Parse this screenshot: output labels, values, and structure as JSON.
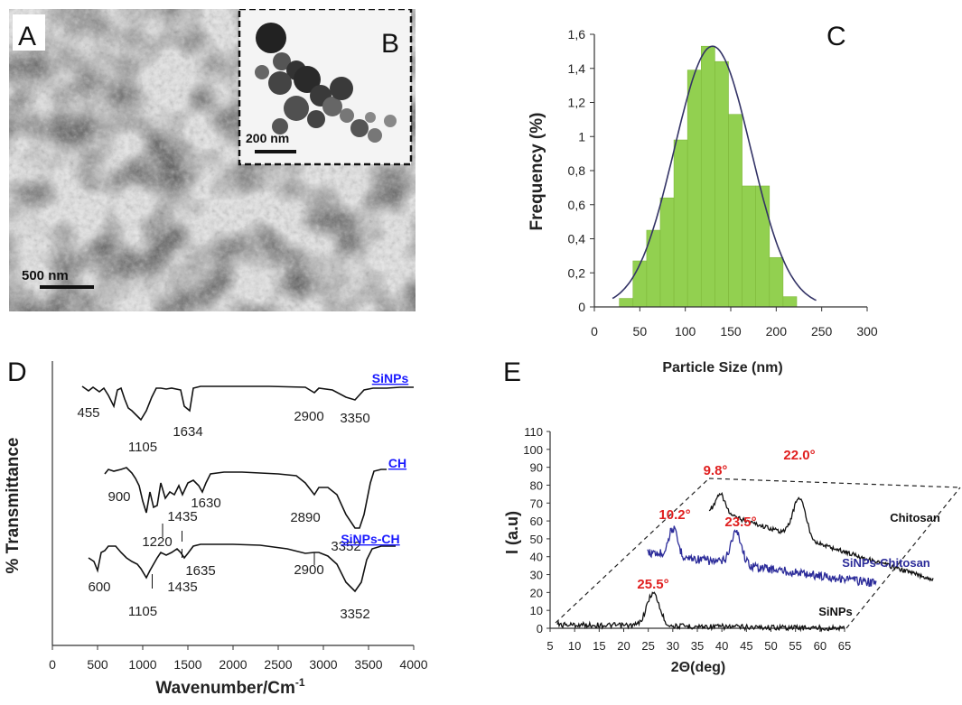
{
  "panels": {
    "A": {
      "letter": "A",
      "scalebar": "500 nm",
      "inset": {
        "letter": "B",
        "scalebar": "200 nm"
      }
    }
  },
  "chart_data": [
    {
      "panel": "C",
      "type": "bar",
      "title": "",
      "xlabel": "Particle Size (nm)",
      "ylabel": "Frequency (%)",
      "xlim": [
        0,
        300
      ],
      "ylim": [
        0,
        1.6
      ],
      "xticks": [
        "0",
        "50",
        "100",
        "150",
        "200",
        "250",
        "300"
      ],
      "yticks": [
        "0",
        "0,2",
        "0,4",
        "0,6",
        "0,8",
        "1",
        "1,2",
        "1,4",
        "1,6"
      ],
      "bars": [
        {
          "x": 35,
          "y": 0.05
        },
        {
          "x": 50,
          "y": 0.27
        },
        {
          "x": 65,
          "y": 0.45
        },
        {
          "x": 80,
          "y": 0.64
        },
        {
          "x": 95,
          "y": 0.98
        },
        {
          "x": 110,
          "y": 1.39
        },
        {
          "x": 125,
          "y": 1.53
        },
        {
          "x": 140,
          "y": 1.44
        },
        {
          "x": 155,
          "y": 1.13
        },
        {
          "x": 170,
          "y": 0.71
        },
        {
          "x": 185,
          "y": 0.71
        },
        {
          "x": 200,
          "y": 0.29
        },
        {
          "x": 215,
          "y": 0.06
        }
      ],
      "bar_width": 15,
      "fit_curve": {
        "mean": 130,
        "sd": 42,
        "peak": 1.53,
        "from": 20,
        "to": 245
      },
      "bar_color": "#92d050",
      "curve_color": "#333366"
    },
    {
      "panel": "D",
      "type": "line",
      "xlabel": "Wavenumber/Cm",
      "xlabel_sup": "-1",
      "ylabel": "% Transmittance",
      "xlim": [
        0,
        4000
      ],
      "xticks": [
        "0",
        "500",
        "1000",
        "1500",
        "2000",
        "2500",
        "3000",
        "3500",
        "4000"
      ],
      "series": [
        {
          "name": "SiNPs",
          "color": "#1a1aff",
          "points": [
            [
              330,
              428
            ],
            [
              400,
              433
            ],
            [
              450,
              429
            ],
            [
              520,
              434
            ],
            [
              570,
              430
            ],
            [
              620,
              438
            ],
            [
              680,
              450
            ],
            [
              720,
              432
            ],
            [
              760,
              430
            ],
            [
              800,
              442
            ],
            [
              840,
              452
            ],
            [
              880,
              455
            ],
            [
              930,
              460
            ],
            [
              980,
              465
            ],
            [
              1040,
              455
            ],
            [
              1100,
              440
            ],
            [
              1150,
              430
            ],
            [
              1200,
              430
            ],
            [
              1260,
              431
            ],
            [
              1320,
              430
            ],
            [
              1420,
              432
            ],
            [
              1460,
              450
            ],
            [
              1520,
              455
            ],
            [
              1560,
              430
            ],
            [
              1640,
              428
            ],
            [
              1800,
              428
            ],
            [
              2000,
              428
            ],
            [
              2400,
              428
            ],
            [
              2800,
              429
            ],
            [
              2900,
              435
            ],
            [
              2950,
              430
            ],
            [
              3100,
              432
            ],
            [
              3250,
              440
            ],
            [
              3350,
              443
            ],
            [
              3450,
              432
            ],
            [
              3550,
              430
            ],
            [
              3700,
              430
            ],
            [
              3850,
              429
            ],
            [
              4000,
              429
            ]
          ],
          "annotations": [
            {
              "text": "455",
              "x": 400,
              "y": 462
            },
            {
              "text": "1105",
              "x": 1000,
              "y": 500
            },
            {
              "text": "1634",
              "x": 1500,
              "y": 483
            },
            {
              "text": "2900",
              "x": 2840,
              "y": 466
            },
            {
              "text": "3350",
              "x": 3350,
              "y": 468
            }
          ]
        },
        {
          "name": "CH",
          "color": "#1a1aff",
          "points": [
            [
              580,
              525
            ],
            [
              620,
              520
            ],
            [
              680,
              522
            ],
            [
              760,
              520
            ],
            [
              820,
              518
            ],
            [
              880,
              524
            ],
            [
              920,
              530
            ],
            [
              960,
              538
            ],
            [
              1000,
              555
            ],
            [
              1040,
              568
            ],
            [
              1080,
              545
            ],
            [
              1120,
              562
            ],
            [
              1160,
              560
            ],
            [
              1200,
              535
            ],
            [
              1250,
              552
            ],
            [
              1300,
              545
            ],
            [
              1350,
              548
            ],
            [
              1400,
              538
            ],
            [
              1440,
              548
            ],
            [
              1500,
              535
            ],
            [
              1560,
              532
            ],
            [
              1620,
              538
            ],
            [
              1660,
              545
            ],
            [
              1700,
              535
            ],
            [
              1750,
              525
            ],
            [
              1900,
              523
            ],
            [
              2100,
              523
            ],
            [
              2500,
              525
            ],
            [
              2700,
              527
            ],
            [
              2800,
              535
            ],
            [
              2900,
              548
            ],
            [
              2950,
              540
            ],
            [
              3050,
              540
            ],
            [
              3150,
              548
            ],
            [
              3250,
              570
            ],
            [
              3350,
              585
            ],
            [
              3400,
              585
            ],
            [
              3450,
              570
            ],
            [
              3520,
              535
            ],
            [
              3560,
              522
            ],
            [
              3640,
              520
            ],
            [
              3700,
              520
            ]
          ],
          "annotations": [
            {
              "text": "900",
              "x": 740,
              "y": 555
            },
            {
              "text": "1435",
              "x": 1440,
              "y": 577
            },
            {
              "text": "1630",
              "x": 1700,
              "y": 562
            },
            {
              "text": "1220",
              "x": 1160,
              "y": 605
            },
            {
              "text": "2890",
              "x": 2800,
              "y": 578
            },
            {
              "text": "3352",
              "x": 3250,
              "y": 610
            }
          ]
        },
        {
          "name": "SiNPs-CH",
          "color": "#1a1aff",
          "points": [
            [
              400,
              618
            ],
            [
              460,
              622
            ],
            [
              500,
              632
            ],
            [
              540,
              612
            ],
            [
              580,
              610
            ],
            [
              620,
              605
            ],
            [
              700,
              605
            ],
            [
              760,
              612
            ],
            [
              820,
              618
            ],
            [
              880,
              622
            ],
            [
              940,
              625
            ],
            [
              980,
              630
            ],
            [
              1040,
              640
            ],
            [
              1080,
              632
            ],
            [
              1120,
              625
            ],
            [
              1160,
              618
            ],
            [
              1200,
              612
            ],
            [
              1260,
              615
            ],
            [
              1320,
              612
            ],
            [
              1380,
              608
            ],
            [
              1420,
              612
            ],
            [
              1460,
              618
            ],
            [
              1500,
              613
            ],
            [
              1560,
              605
            ],
            [
              1640,
              603
            ],
            [
              1700,
              603
            ],
            [
              1800,
              603
            ],
            [
              2000,
              603
            ],
            [
              2300,
              604
            ],
            [
              2600,
              608
            ],
            [
              2800,
              613
            ],
            [
              2900,
              612
            ],
            [
              2950,
              612
            ],
            [
              3050,
              616
            ],
            [
              3150,
              625
            ],
            [
              3250,
              645
            ],
            [
              3350,
              655
            ],
            [
              3420,
              645
            ],
            [
              3480,
              620
            ],
            [
              3540,
              608
            ],
            [
              3640,
              605
            ],
            [
              3800,
              605
            ]
          ],
          "annotations": [
            {
              "text": "600",
              "x": 520,
              "y": 655
            },
            {
              "text": "1435",
              "x": 1440,
              "y": 655
            },
            {
              "text": "1635",
              "x": 1640,
              "y": 637
            },
            {
              "text": "1105",
              "x": 1000,
              "y": 682
            },
            {
              "text": "2900",
              "x": 2840,
              "y": 636
            },
            {
              "text": "3352",
              "x": 3350,
              "y": 685
            }
          ]
        }
      ]
    },
    {
      "panel": "E",
      "type": "line",
      "xlabel": "2Θ(deg)",
      "ylabel": "I (a.u)",
      "xticks": [
        "5",
        "10",
        "15",
        "20",
        "25",
        "30",
        "35",
        "40",
        "45",
        "50",
        "55",
        "60",
        "65"
      ],
      "yticks": [
        "0",
        "10",
        "20",
        "30",
        "40",
        "50",
        "60",
        "70",
        "80",
        "90",
        "100",
        "110"
      ],
      "xlim": [
        5,
        65
      ],
      "ylim": [
        0,
        110
      ],
      "series": [
        {
          "name": "SiNPs",
          "color": "#111111",
          "peaks": [
            {
              "label": "25.5°",
              "x": 25.5
            }
          ]
        },
        {
          "name": "SiNPs-Chitosan",
          "color": "#2b2b99",
          "peaks": [
            {
              "label": "10.2°",
              "x": 10.2
            },
            {
              "label": "23.5°",
              "x": 23.5
            }
          ]
        },
        {
          "name": "Chitosan",
          "color": "#111111",
          "peaks": [
            {
              "label": "9.8°",
              "x": 9.8
            },
            {
              "label": "22.0°",
              "x": 22.0
            }
          ]
        }
      ],
      "peak_label_color": "#e02020"
    }
  ]
}
